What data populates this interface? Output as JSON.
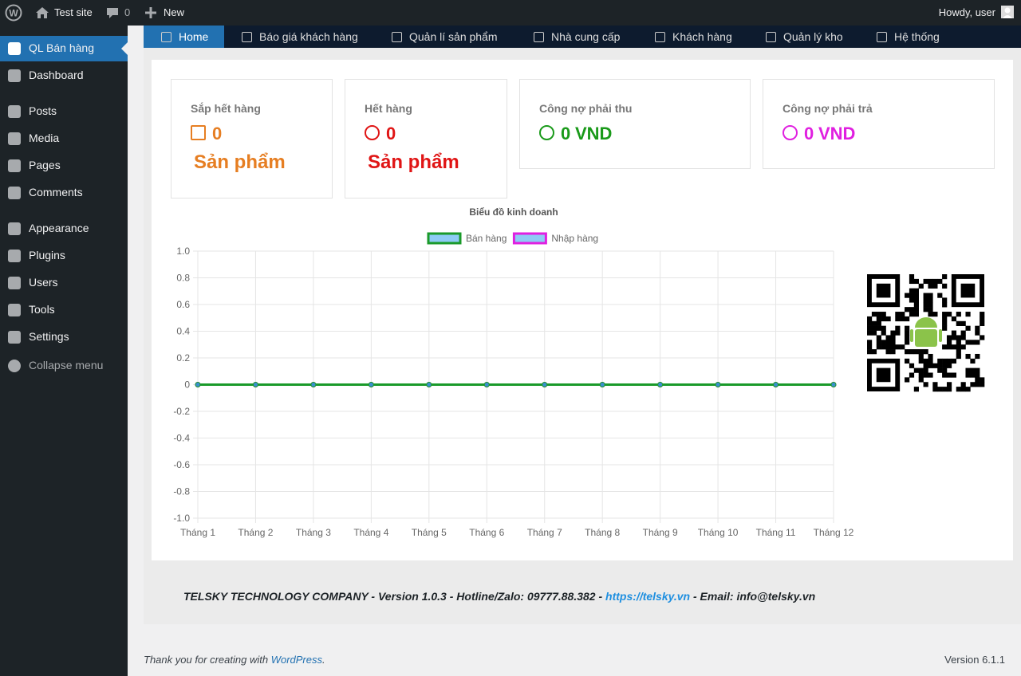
{
  "admin_bar": {
    "site": "Test site",
    "comments": 0,
    "new": "New",
    "greeting": "Howdy, user"
  },
  "sidebar": {
    "items": [
      "QL Bán hàng",
      "Dashboard",
      "Posts",
      "Media",
      "Pages",
      "Comments",
      "Appearance",
      "Plugins",
      "Users",
      "Tools",
      "Settings"
    ],
    "collapse": "Collapse menu"
  },
  "nav": {
    "tabs": [
      "Home",
      "Báo giá khách hàng",
      "Quản lí sản phẩm",
      "Nhà cung cấp",
      "Khách hàng",
      "Quản lý kho",
      "Hệ thống"
    ]
  },
  "cards": [
    {
      "title": "Sắp hết hàng",
      "value": 0,
      "unit": "Sản phẩm"
    },
    {
      "title": "Hết hàng",
      "value": 0,
      "unit": "Sản phẩm"
    },
    {
      "title": "Công nợ phải thu",
      "value": 0,
      "unit": "VND"
    },
    {
      "title": "Công nợ phải trả",
      "value": 0,
      "unit": "VND"
    }
  ],
  "chart_data": {
    "type": "line",
    "title": "Biểu đồ kinh doanh",
    "categories": [
      "Tháng 1",
      "Tháng 2",
      "Tháng 3",
      "Tháng 4",
      "Tháng 5",
      "Tháng 6",
      "Tháng 7",
      "Tháng 8",
      "Tháng 9",
      "Tháng 10",
      "Tháng 11",
      "Tháng 12"
    ],
    "series": [
      {
        "name": "Bán hàng",
        "color": "#1a9a2a",
        "values": [
          0,
          0,
          0,
          0,
          0,
          0,
          0,
          0,
          0,
          0,
          0,
          0
        ]
      },
      {
        "name": "Nhập hàng",
        "color": "#e020e0",
        "values": [
          0,
          0,
          0,
          0,
          0,
          0,
          0,
          0,
          0,
          0,
          0,
          0
        ]
      }
    ],
    "ylim": [
      -1,
      1
    ],
    "yticks": [
      {
        "value": -1,
        "label": "-1.0"
      },
      -0.8,
      -0.6,
      -0.4,
      -0.2,
      0,
      0.2,
      0.4,
      0.6,
      0.8,
      {
        "value": 1,
        "label": "1.0"
      }
    ],
    "grid": true,
    "legend": "top"
  },
  "footer": {
    "company": "TELSKY TECHNOLOGY COMPANY - Version 1.0.3 - Hotline/Zalo: 09777.88.382 - ",
    "link": "https://telsky.vn",
    "email": " - Email: info@telsky.vn",
    "thanks": "Thank you for creating with ",
    "wp": "WordPress",
    "dot": ".",
    "version": "Version 6.1.1"
  }
}
